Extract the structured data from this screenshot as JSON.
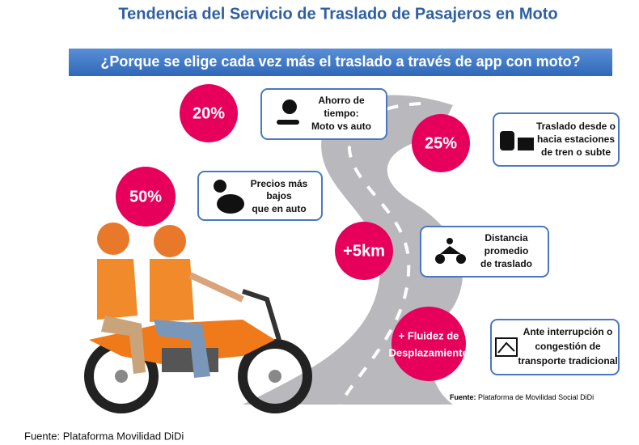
{
  "header": {
    "title": "Tendencia del Servicio de Traslado de Pasajeros en Moto",
    "subtitle": "¿Porque se elige cada vez más el traslado a través de app con moto?"
  },
  "items": [
    {
      "badge": "20%",
      "lines": [
        "Ahorro de",
        "tiempo:",
        "Moto vs auto"
      ]
    },
    {
      "badge": "25%",
      "lines": [
        "Traslado desde o",
        "hacia estaciones",
        "de tren o subte"
      ]
    },
    {
      "badge": "50%",
      "lines": [
        "Precios más",
        "bajos",
        "que en auto"
      ]
    },
    {
      "badge": "+5km",
      "lines": [
        "Distancia",
        "promedio",
        "de traslado"
      ]
    },
    {
      "badge_lines": [
        "+ Fluidez de",
        "Desplazamiento"
      ],
      "lines": [
        "Ante interrupción o",
        "congestión de",
        "transporte tradicional"
      ]
    }
  ],
  "source_inner": {
    "label": "Fuente:",
    "text": "Plataforma de Movilidad Social DiDi"
  },
  "footer": "Fuente: Plataforma Movilidad DiDi"
}
